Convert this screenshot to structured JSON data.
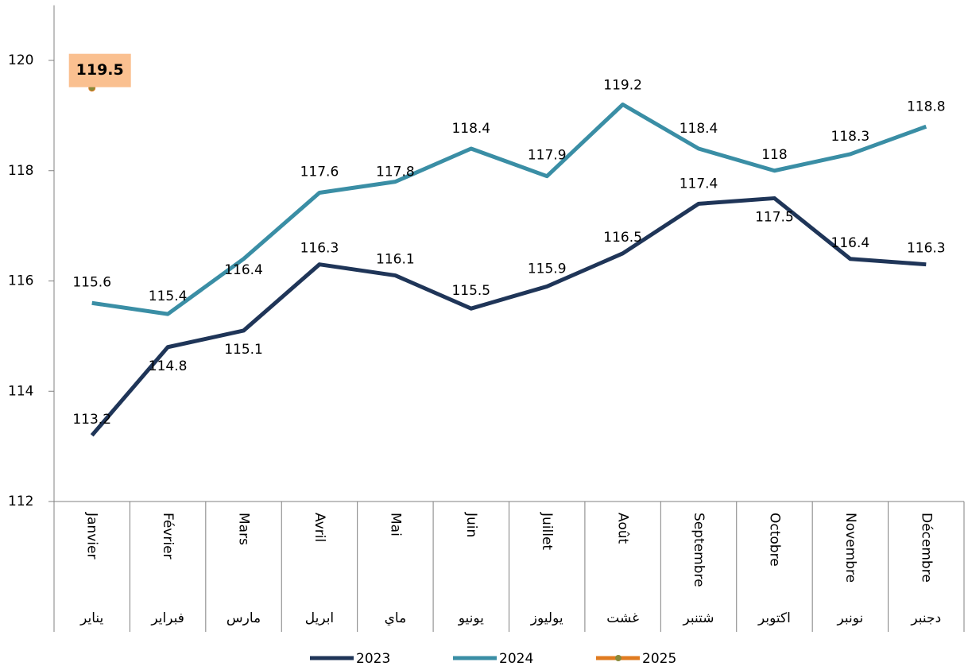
{
  "chart_data": {
    "type": "line",
    "categories": [
      "Janvier",
      "Février",
      "Mars",
      "Avril",
      "Mai",
      "Juin",
      "Juillet",
      "Août",
      "Septembre",
      "Octobre",
      "Novembre",
      "Décembre"
    ],
    "categories_ar": [
      "يناير",
      "فبراير",
      "مارس",
      "ابريل",
      "ماي",
      "يونيو",
      "يوليوز",
      "غشت",
      "شتنبر",
      "اكتوبر",
      "نونبر",
      "دجنبر"
    ],
    "series": [
      {
        "name": "2023",
        "color": "#1f3558",
        "values": [
          113.2,
          114.8,
          115.1,
          116.3,
          116.1,
          115.5,
          115.9,
          116.5,
          117.4,
          117.5,
          116.4,
          116.3
        ]
      },
      {
        "name": "2024",
        "color": "#3a8ea5",
        "values": [
          115.6,
          115.4,
          116.4,
          117.6,
          117.8,
          118.4,
          117.9,
          119.2,
          118.4,
          118,
          118.3,
          118.8
        ]
      },
      {
        "name": "2025",
        "color": "#e07b20",
        "values": [
          119.5,
          null,
          null,
          null,
          null,
          null,
          null,
          null,
          null,
          null,
          null,
          null
        ]
      }
    ],
    "ylim": [
      112,
      121
    ],
    "yticks": [
      112,
      114,
      116,
      118,
      120
    ],
    "grid": false,
    "legend": "bottom"
  }
}
